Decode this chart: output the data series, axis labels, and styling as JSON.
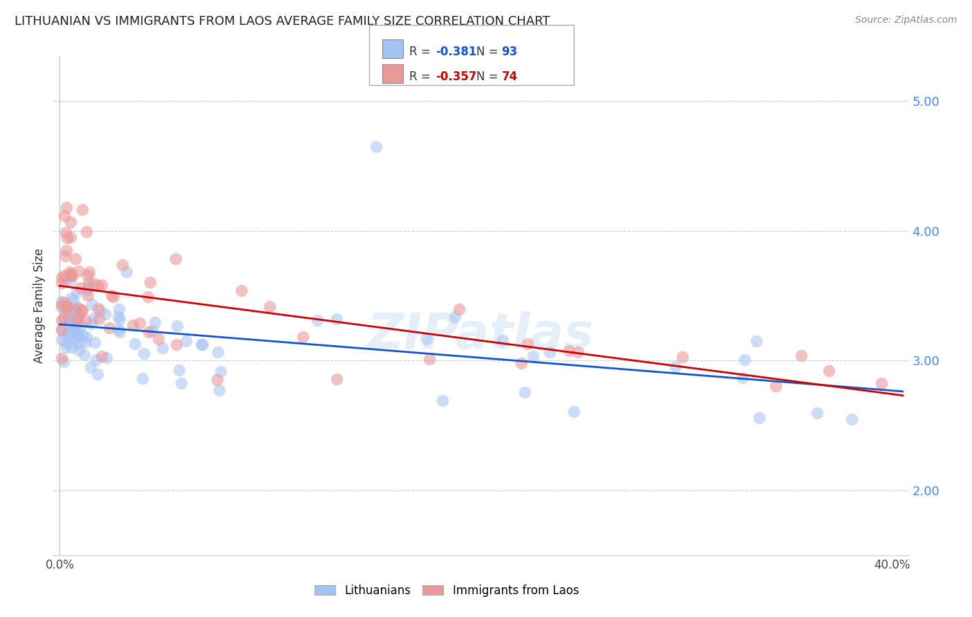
{
  "title": "LITHUANIAN VS IMMIGRANTS FROM LAOS AVERAGE FAMILY SIZE CORRELATION CHART",
  "source": "Source: ZipAtlas.com",
  "ylabel": "Average Family Size",
  "ylim": [
    1.5,
    5.35
  ],
  "xlim": [
    -0.003,
    0.408
  ],
  "yticks": [
    2.0,
    3.0,
    4.0,
    5.0
  ],
  "blue_color": "#a4c2f4",
  "pink_color": "#ea9999",
  "blue_line_color": "#1155cc",
  "pink_line_color": "#cc0000",
  "right_axis_color": "#4a86e8",
  "legend_R_blue": "-0.381",
  "legend_N_blue": "93",
  "legend_R_pink": "-0.357",
  "legend_N_pink": "74",
  "watermark": "ZIPatlas"
}
